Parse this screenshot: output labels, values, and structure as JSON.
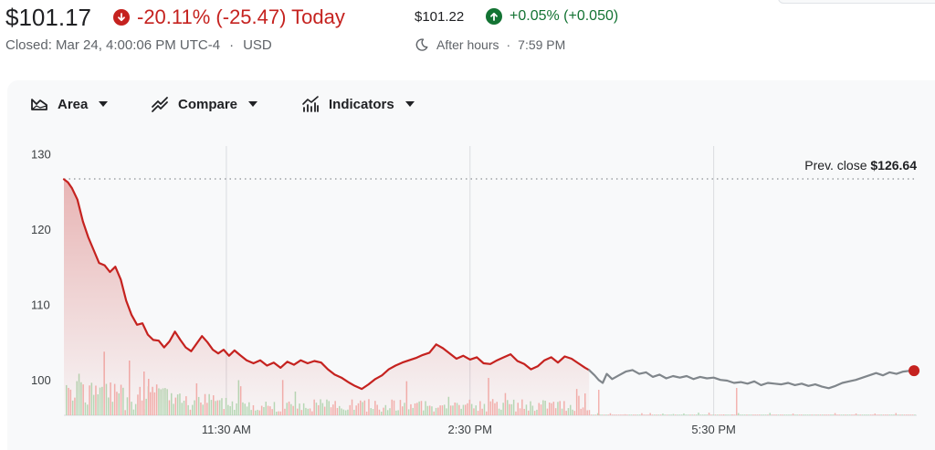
{
  "header": {
    "price": "$101.17",
    "change_text": "-20.11% (-25.47) Today",
    "closed_text": "Closed: Mar 24, 4:00:06 PM UTC-4",
    "closed_sep": "·",
    "currency": "USD",
    "after_hours_price": "$101.22",
    "after_hours_change": "+0.05% (+0.050)",
    "after_hours_label": "After hours",
    "after_hours_sep": "·",
    "after_hours_time": "7:59 PM",
    "down_icon": "arrow-down-circle-icon",
    "up_icon": "arrow-up-circle-icon",
    "moon_icon": "moon-icon"
  },
  "toolbar": {
    "area_label": "Area",
    "compare_label": "Compare",
    "indicators_label": "Indicators",
    "area_icon": "area-chart-icon",
    "compare_icon": "compare-icon",
    "indicators_icon": "indicators-icon",
    "caret_icon": "caret-down-icon"
  },
  "colors": {
    "down": "#c5221f",
    "up": "#137333",
    "after_hours_line": "#80868b",
    "volume_down": "#f3b3b0",
    "volume_up": "#b6dcb9"
  },
  "chart_data": {
    "type": "area",
    "x_ticks": [
      "11:30 AM",
      "2:30 PM",
      "5:30 PM"
    ],
    "x_tick_minutes": [
      690,
      870,
      1050
    ],
    "x_range_minutes": [
      570,
      1200
    ],
    "y_ticks": [
      100,
      110,
      120,
      130
    ],
    "y_range": [
      95.3,
      131
    ],
    "prev_close_label": "Prev. close",
    "prev_close_value": "$126.64",
    "prev_close": 126.64,
    "grid": "vertical lines at x ticks",
    "series": [
      {
        "session": "regular",
        "color": "#c5221f",
        "x_minutes": [
          570,
          573,
          576,
          580,
          584,
          588,
          592,
          596,
          600,
          604,
          608,
          612,
          616,
          620,
          624,
          628,
          632,
          636,
          640,
          644,
          648,
          652,
          656,
          660,
          664,
          668,
          672,
          676,
          680,
          684,
          688,
          692,
          696,
          700,
          705,
          710,
          715,
          720,
          725,
          730,
          735,
          740,
          745,
          750,
          755,
          760,
          765,
          770,
          775,
          780,
          785,
          790,
          795,
          800,
          805,
          810,
          815,
          820,
          825,
          830,
          835,
          840,
          845,
          850,
          855,
          860,
          865,
          870,
          875,
          880,
          885,
          890,
          895,
          900,
          905,
          910,
          915,
          920,
          925,
          930,
          935,
          940,
          945,
          950,
          955,
          958
        ],
        "values": [
          126.6,
          126.2,
          125.4,
          123.9,
          121.0,
          118.9,
          117.2,
          115.5,
          115.2,
          114.3,
          115.0,
          113.3,
          110.5,
          108.6,
          107.3,
          107.5,
          106.0,
          105.3,
          105.2,
          104.3,
          105.1,
          106.4,
          105.3,
          104.3,
          103.8,
          104.8,
          105.8,
          105.0,
          104.0,
          103.5,
          104.0,
          103.2,
          103.9,
          103.3,
          102.6,
          102.2,
          102.6,
          101.9,
          102.3,
          101.6,
          102.4,
          102.0,
          102.6,
          102.2,
          102.5,
          102.3,
          101.4,
          100.7,
          100.3,
          99.7,
          99.2,
          98.8,
          99.4,
          100.1,
          100.6,
          101.4,
          101.9,
          102.3,
          102.6,
          102.9,
          103.3,
          103.6,
          104.7,
          104.2,
          103.5,
          102.8,
          103.2,
          102.7,
          103.0,
          102.2,
          102.1,
          102.6,
          103.0,
          103.4,
          102.5,
          102.1,
          101.4,
          101.8,
          102.6,
          103.0,
          102.3,
          103.1,
          102.8,
          102.2,
          101.6,
          101.3
        ]
      },
      {
        "session": "after_hours",
        "color": "#80868b",
        "x_minutes": [
          958,
          962,
          965,
          968,
          971,
          975,
          980,
          985,
          990,
          995,
          1000,
          1005,
          1010,
          1015,
          1020,
          1025,
          1030,
          1035,
          1040,
          1045,
          1050,
          1055,
          1060,
          1065,
          1070,
          1075,
          1080,
          1085,
          1090,
          1095,
          1100,
          1105,
          1110,
          1115,
          1120,
          1125,
          1130,
          1135,
          1140,
          1145,
          1150,
          1155,
          1160,
          1165,
          1170,
          1175,
          1180,
          1185,
          1190,
          1195,
          1198
        ],
        "values": [
          101.3,
          100.6,
          100.0,
          99.6,
          100.8,
          100.1,
          100.6,
          101.1,
          101.3,
          100.8,
          101.0,
          100.4,
          100.7,
          100.2,
          100.5,
          100.3,
          100.5,
          100.1,
          100.4,
          100.2,
          100.3,
          100.0,
          99.9,
          99.6,
          99.7,
          99.5,
          99.8,
          99.3,
          99.6,
          99.5,
          99.4,
          99.6,
          99.3,
          99.5,
          99.2,
          99.4,
          99.1,
          98.9,
          99.2,
          99.6,
          99.8,
          100.0,
          100.3,
          100.6,
          100.9,
          100.6,
          101.0,
          100.8,
          101.1,
          101.2,
          101.22
        ]
      }
    ],
    "last_point": {
      "x_minutes": 1198,
      "value": 101.22
    }
  }
}
